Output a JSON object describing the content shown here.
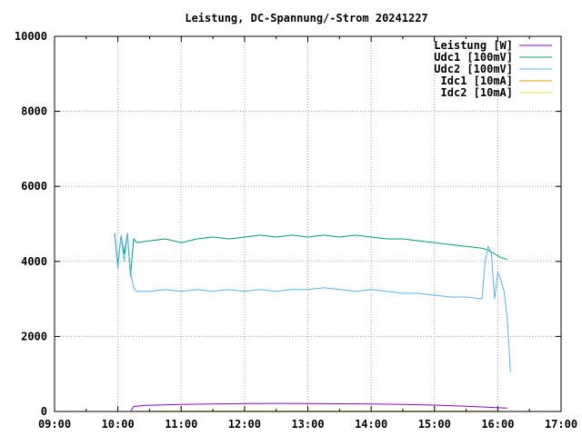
{
  "chart_data": {
    "type": "line",
    "title": "Leistung, DC-Spannung/-Strom 20241227",
    "xlabel": "",
    "ylabel": "",
    "xlim": [
      9,
      17
    ],
    "ylim": [
      0,
      10000
    ],
    "x_ticks": [
      "09:00",
      "10:00",
      "11:00",
      "12:00",
      "13:00",
      "14:00",
      "15:00",
      "16:00",
      "17:00"
    ],
    "y_ticks": [
      "0",
      "2000",
      "4000",
      "6000",
      "8000",
      "10000"
    ],
    "grid": true,
    "legend_position": "top-right",
    "x_unit": "hours (time of day)",
    "series": [
      {
        "name": "Leistung [W]",
        "color": "#9400d3",
        "x": [
          10.2,
          10.25,
          10.4,
          10.6,
          10.8,
          11.0,
          11.5,
          12.0,
          12.5,
          13.0,
          13.5,
          14.0,
          14.5,
          15.0,
          15.5,
          15.9,
          16.0,
          16.15
        ],
        "y": [
          0,
          130,
          160,
          170,
          180,
          190,
          200,
          210,
          215,
          210,
          205,
          200,
          190,
          170,
          140,
          110,
          100,
          90
        ]
      },
      {
        "name": "Udc1 [100mV]",
        "color": "#009e73",
        "x": [
          9.95,
          10.0,
          10.05,
          10.1,
          10.15,
          10.2,
          10.25,
          10.3,
          10.5,
          10.75,
          11.0,
          11.25,
          11.5,
          11.75,
          12.0,
          12.25,
          12.5,
          12.75,
          13.0,
          13.25,
          13.5,
          13.75,
          14.0,
          14.25,
          14.5,
          14.75,
          15.0,
          15.25,
          15.5,
          15.75,
          15.85,
          15.95,
          16.05,
          16.15
        ],
        "y": [
          4750,
          3900,
          4700,
          4200,
          4750,
          3600,
          4600,
          4500,
          4550,
          4600,
          4500,
          4600,
          4650,
          4600,
          4650,
          4700,
          4650,
          4700,
          4650,
          4700,
          4650,
          4700,
          4650,
          4600,
          4600,
          4550,
          4500,
          4450,
          4400,
          4350,
          4300,
          4200,
          4100,
          4050
        ]
      },
      {
        "name": "Udc2 [100mV]",
        "color": "#56b4e9",
        "x": [
          9.95,
          10.0,
          10.05,
          10.1,
          10.15,
          10.2,
          10.25,
          10.3,
          10.5,
          10.75,
          11.0,
          11.25,
          11.5,
          11.75,
          12.0,
          12.25,
          12.5,
          12.75,
          13.0,
          13.25,
          13.5,
          13.75,
          14.0,
          14.25,
          14.5,
          14.75,
          15.0,
          15.25,
          15.5,
          15.75,
          15.8,
          15.85,
          15.9,
          15.95,
          16.0,
          16.05,
          16.1,
          16.15,
          16.2
        ],
        "y": [
          4700,
          3800,
          4700,
          4000,
          4750,
          3700,
          3300,
          3200,
          3200,
          3250,
          3200,
          3250,
          3200,
          3250,
          3200,
          3250,
          3200,
          3250,
          3250,
          3300,
          3250,
          3200,
          3250,
          3200,
          3150,
          3150,
          3100,
          3050,
          3050,
          3000,
          4000,
          4400,
          4200,
          3000,
          3700,
          3500,
          3200,
          2500,
          1050
        ]
      },
      {
        "name": "Idc1 [10mA]",
        "color": "#e69f00",
        "x": [
          10.2,
          11.0,
          12.0,
          13.0,
          14.0,
          15.0,
          16.0,
          16.15
        ],
        "y": [
          0,
          5,
          5,
          5,
          5,
          5,
          5,
          0
        ]
      },
      {
        "name": "Idc2 [10mA]",
        "color": "#f0e442",
        "x": [
          10.2,
          11.0,
          12.0,
          13.0,
          14.0,
          15.0,
          16.0,
          16.15
        ],
        "y": [
          0,
          3,
          3,
          3,
          3,
          3,
          3,
          0
        ]
      }
    ]
  }
}
